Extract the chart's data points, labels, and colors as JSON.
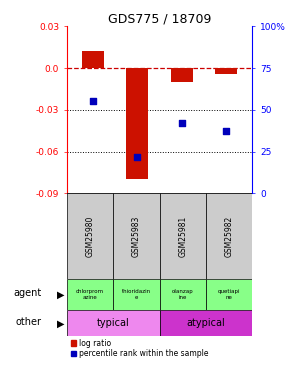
{
  "title": "GDS775 / 18709",
  "samples": [
    "GSM25980",
    "GSM25983",
    "GSM25981",
    "GSM25982"
  ],
  "log_ratios": [
    0.012,
    -0.08,
    -0.01,
    -0.004
  ],
  "percentile_ranks": [
    55,
    22,
    42,
    37
  ],
  "ylim_left": [
    -0.09,
    0.03
  ],
  "ylim_right": [
    0,
    100
  ],
  "yticks_left": [
    0.03,
    0.0,
    -0.03,
    -0.06,
    -0.09
  ],
  "yticks_right": [
    100,
    75,
    50,
    25,
    0
  ],
  "bar_color": "#cc1100",
  "dot_color": "#0000bb",
  "agent_labels": [
    "chlorprom\nazine",
    "thioridazin\ne",
    "olanzap\nine",
    "quetiapi\nne"
  ],
  "agent_color": "#88ff88",
  "typical_color": "#ee88ee",
  "atypical_color": "#cc33cc",
  "typical_label": "typical",
  "atypical_label": "atypical",
  "sample_bg_color": "#cccccc",
  "hline_color": "#cc0000",
  "bar_width": 0.5,
  "dot_size": 25
}
